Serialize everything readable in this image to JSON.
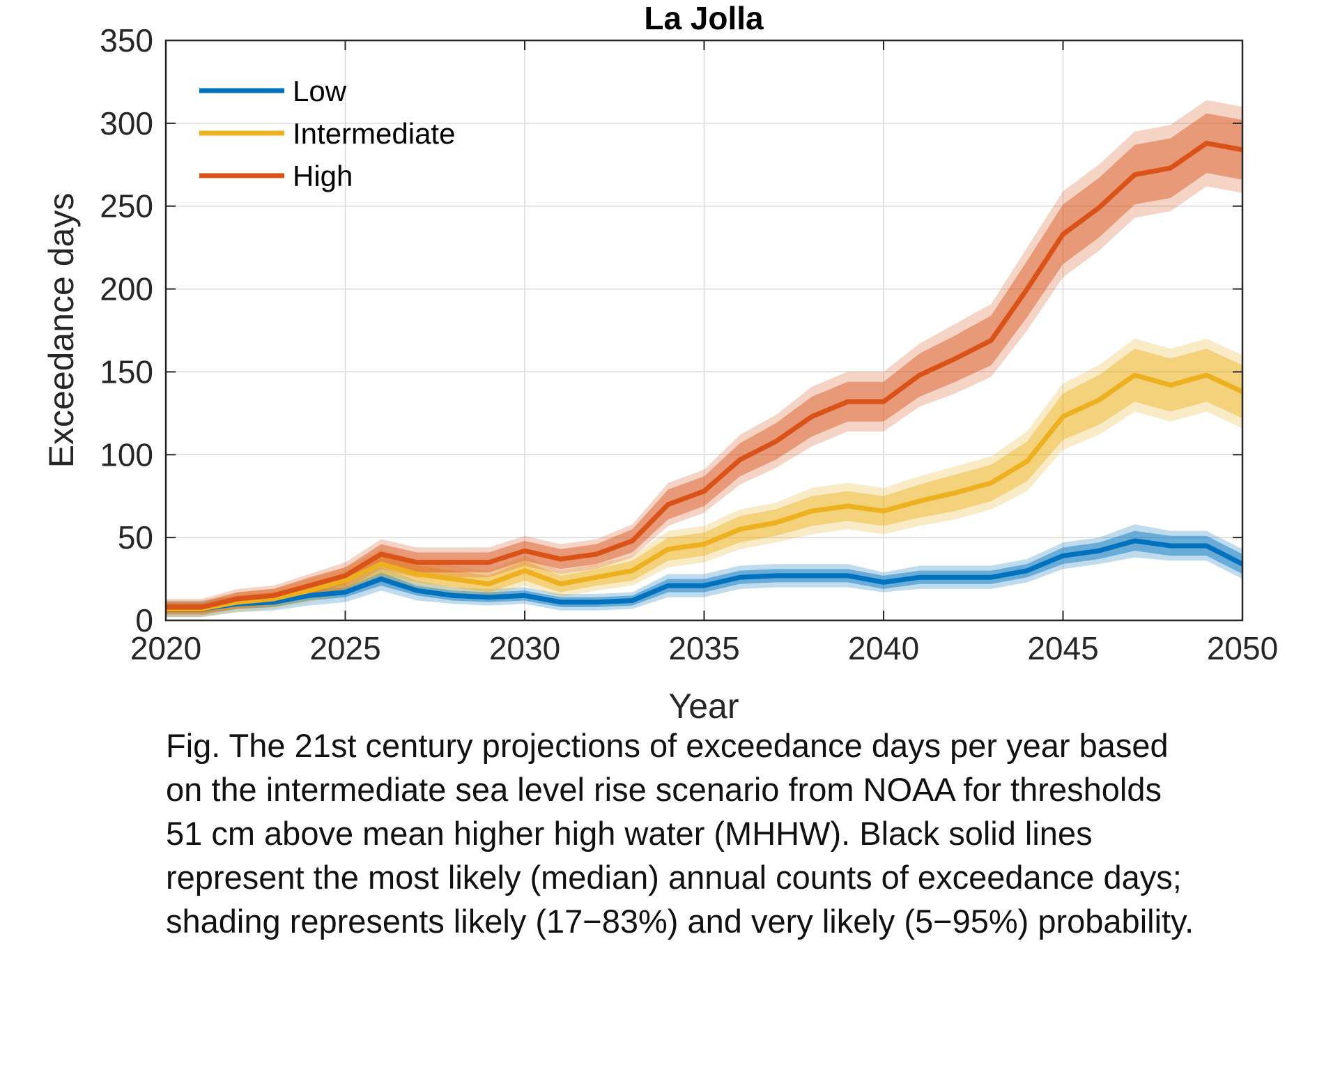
{
  "chart_data": {
    "type": "line",
    "title": "La Jolla",
    "xlabel": "Year",
    "ylabel": "Exceedance days",
    "xlim": [
      2020,
      2050
    ],
    "ylim": [
      0,
      350
    ],
    "xticks": [
      "2020",
      "2025",
      "2030",
      "2035",
      "2040",
      "2045",
      "2050"
    ],
    "yticks": [
      "0",
      "50",
      "100",
      "150",
      "200",
      "250",
      "300",
      "350"
    ],
    "grid": true,
    "legend_position": "top-left",
    "x": [
      2020,
      2021,
      2022,
      2023,
      2024,
      2025,
      2026,
      2027,
      2028,
      2029,
      2030,
      2031,
      2032,
      2033,
      2034,
      2035,
      2036,
      2037,
      2038,
      2039,
      2040,
      2041,
      2042,
      2043,
      2044,
      2045,
      2046,
      2047,
      2048,
      2049,
      2050
    ],
    "series": [
      {
        "name": "Low",
        "color": "#0072BD",
        "values": [
          7,
          7,
          10,
          11,
          15,
          17,
          25,
          18,
          15,
          14,
          15,
          11,
          11,
          12,
          21,
          21,
          26,
          27,
          27,
          27,
          23,
          26,
          26,
          26,
          30,
          39,
          42,
          48,
          45,
          45,
          34
        ],
        "likely_halfwidth": [
          3,
          3,
          3,
          3,
          3,
          3,
          4,
          3,
          3,
          3,
          3,
          3,
          3,
          3,
          4,
          4,
          4,
          4,
          4,
          4,
          4,
          4,
          4,
          4,
          4,
          5,
          5,
          6,
          6,
          6,
          6
        ],
        "very_likely_halfwidth": [
          5,
          5,
          5,
          5,
          6,
          6,
          7,
          6,
          5,
          5,
          5,
          5,
          5,
          5,
          7,
          7,
          7,
          7,
          7,
          7,
          6,
          7,
          7,
          7,
          7,
          8,
          8,
          10,
          9,
          9,
          9
        ]
      },
      {
        "name": "Intermediate",
        "color": "#EDB120",
        "values": [
          7,
          7,
          11,
          13,
          18,
          24,
          34,
          28,
          25,
          22,
          30,
          22,
          26,
          30,
          43,
          46,
          55,
          59,
          66,
          69,
          66,
          72,
          77,
          83,
          96,
          123,
          133,
          148,
          142,
          148,
          138
        ],
        "likely_halfwidth": [
          3,
          3,
          4,
          4,
          4,
          5,
          6,
          5,
          5,
          5,
          6,
          5,
          5,
          6,
          7,
          7,
          8,
          8,
          9,
          9,
          9,
          10,
          11,
          11,
          12,
          14,
          15,
          16,
          16,
          16,
          16
        ],
        "very_likely_halfwidth": [
          5,
          5,
          6,
          6,
          7,
          8,
          9,
          8,
          8,
          8,
          9,
          8,
          8,
          9,
          11,
          11,
          12,
          12,
          14,
          14,
          14,
          15,
          16,
          16,
          18,
          20,
          21,
          22,
          22,
          22,
          22
        ]
      },
      {
        "name": "High",
        "color": "#D95319",
        "values": [
          8,
          8,
          13,
          15,
          21,
          27,
          40,
          35,
          35,
          35,
          42,
          37,
          40,
          48,
          70,
          78,
          97,
          108,
          123,
          132,
          132,
          148,
          158,
          169,
          200,
          233,
          249,
          269,
          273,
          288,
          284
        ],
        "likely_halfwidth": [
          3,
          3,
          4,
          4,
          5,
          5,
          6,
          6,
          6,
          6,
          6,
          6,
          6,
          7,
          9,
          9,
          10,
          11,
          12,
          12,
          12,
          13,
          14,
          15,
          17,
          18,
          18,
          18,
          18,
          18,
          18
        ],
        "very_likely_halfwidth": [
          5,
          5,
          6,
          6,
          7,
          8,
          9,
          9,
          9,
          9,
          9,
          9,
          9,
          10,
          13,
          13,
          15,
          16,
          18,
          18,
          18,
          19,
          21,
          22,
          25,
          26,
          26,
          26,
          26,
          26,
          26
        ]
      }
    ]
  },
  "caption": {
    "lines": [
      "Fig. The 21st century projections of exceedance days per year based",
      "on the intermediate sea level rise scenario from NOAA for thresholds",
      "51 cm above mean higher high water (MHHW). Black solid lines",
      "represent the most likely (median) annual counts of exceedance days;",
      "shading represents likely (17−83%) and very likely (5−95%) probability."
    ]
  }
}
